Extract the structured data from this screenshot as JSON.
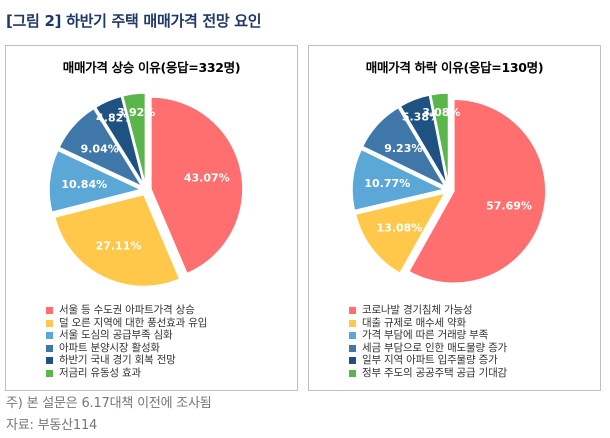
{
  "figure": {
    "title": "[그림 2] 하반기 주택 매매가격 전망 요인",
    "footnote": "주) 본 설문은 6.17대책 이전에 조사됨",
    "source": "자료: 부동산114"
  },
  "chart_data": [
    {
      "type": "pie",
      "title": "매매가격 상승 이유(응답=332명)",
      "categories": [
        "서울 등 수도권 아파트가격 상승",
        "덜 오른 지역에 대한 풍선효과 유입",
        "서울 도심의 공급부족 심화",
        "아파트 분양시장 활성화",
        "하반기 국내 경기 회복 전망",
        "저금리 유동성 효과"
      ],
      "values": [
        43.07,
        27.11,
        10.84,
        9.04,
        4.82,
        3.92
      ],
      "value_labels": [
        "43.07%",
        "27.11%",
        "10.84%",
        "9.04%",
        "4.82%",
        "3.92%"
      ],
      "colors": [
        "#ff6f6f",
        "#ffc84a",
        "#5ba7d8",
        "#3f78a8",
        "#1e5282",
        "#5ab54b"
      ],
      "start": "12 o'clock",
      "direction": "clockwise",
      "exploded": true,
      "legend": "bottom"
    },
    {
      "type": "pie",
      "title": "매매가격 하락 이유(응답=130명)",
      "categories": [
        "코로나발 경기침체 가능성",
        "대출 규제로 매수세 약화",
        "가격 부담에 따른 거래량 부족",
        "세금 부담으로 인한 매도물량 증가",
        "일부 지역 아파트 입주물량 증가",
        "정부 주도의 공공주택 공급 기대감"
      ],
      "values": [
        57.69,
        13.08,
        10.77,
        9.23,
        5.38,
        3.08
      ],
      "value_labels": [
        "57.69%",
        "13.08%",
        "10.77%",
        "9.23%",
        "5.38%",
        "3.08%"
      ],
      "colors": [
        "#ff6f6f",
        "#ffc84a",
        "#5ba7d8",
        "#3f78a8",
        "#1e5282",
        "#5ab54b"
      ],
      "start": "12 o'clock",
      "direction": "clockwise",
      "exploded": true,
      "legend": "bottom"
    }
  ]
}
